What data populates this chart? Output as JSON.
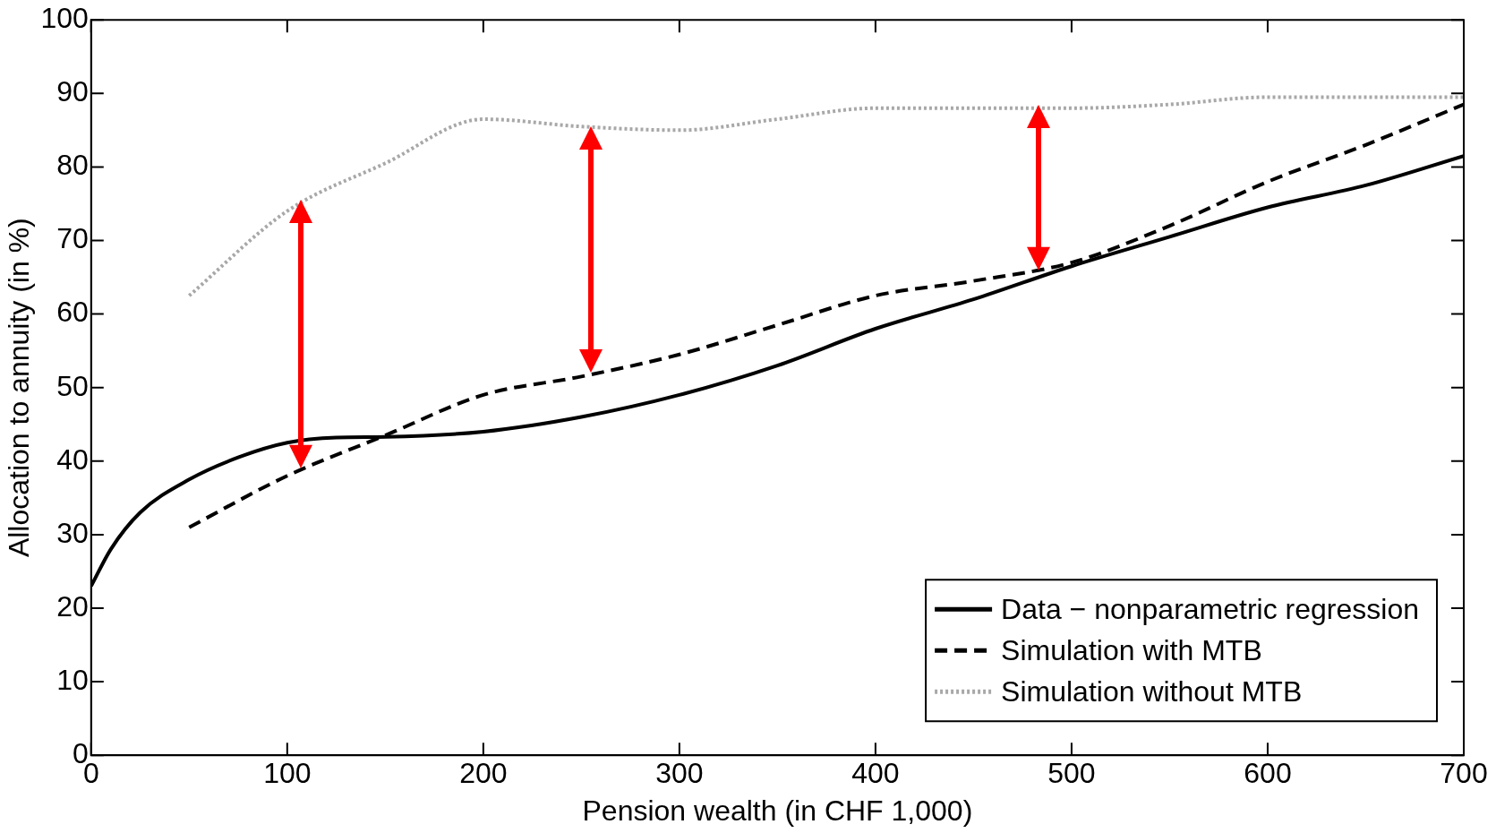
{
  "chart_data": {
    "type": "line",
    "xlabel": "Pension wealth (in CHF 1,000)",
    "ylabel": "Allocation to annuity (in %)",
    "xlim": [
      0,
      700
    ],
    "xticks": [
      0,
      100,
      200,
      300,
      400,
      500,
      600,
      700
    ],
    "ylim": [
      0,
      100
    ],
    "yticks": [
      0,
      10,
      20,
      30,
      40,
      50,
      60,
      70,
      80,
      90,
      100
    ],
    "grid": false,
    "legend": "bottom right",
    "marker": "none",
    "series": [
      {
        "name": "Data − nonparametric regression",
        "color": "#000000",
        "line_style": "solid",
        "x": [
          0,
          10,
          25,
          50,
          75,
          100,
          125,
          150,
          200,
          250,
          300,
          350,
          400,
          450,
          500,
          550,
          600,
          650,
          700
        ],
        "values": [
          23,
          28,
          33,
          37.5,
          40.5,
          42.5,
          43.2,
          43.3,
          44,
          46,
          49,
          53,
          58,
          62,
          66.5,
          70.5,
          74.5,
          77.5,
          81.5
        ]
      },
      {
        "name": "Simulation with MTB",
        "color": "#000000",
        "line_style": "dashed",
        "x": [
          50,
          100,
          150,
          200,
          250,
          300,
          350,
          400,
          450,
          500,
          550,
          600,
          650,
          700
        ],
        "values": [
          31,
          38,
          43.5,
          49,
          51.5,
          54.5,
          58.5,
          62.5,
          64.5,
          67,
          72,
          78,
          83,
          88.5
        ]
      },
      {
        "name": "Simulation without MTB",
        "color": "#a8a8a8",
        "line_style": "dotted",
        "x": [
          50,
          100,
          150,
          200,
          250,
          300,
          350,
          400,
          450,
          500,
          550,
          600,
          650,
          700
        ],
        "values": [
          62.5,
          74,
          80.5,
          86.5,
          85.5,
          85,
          86.5,
          88,
          88,
          88,
          88.5,
          89.5,
          89.5,
          89.5
        ]
      }
    ]
  }
}
